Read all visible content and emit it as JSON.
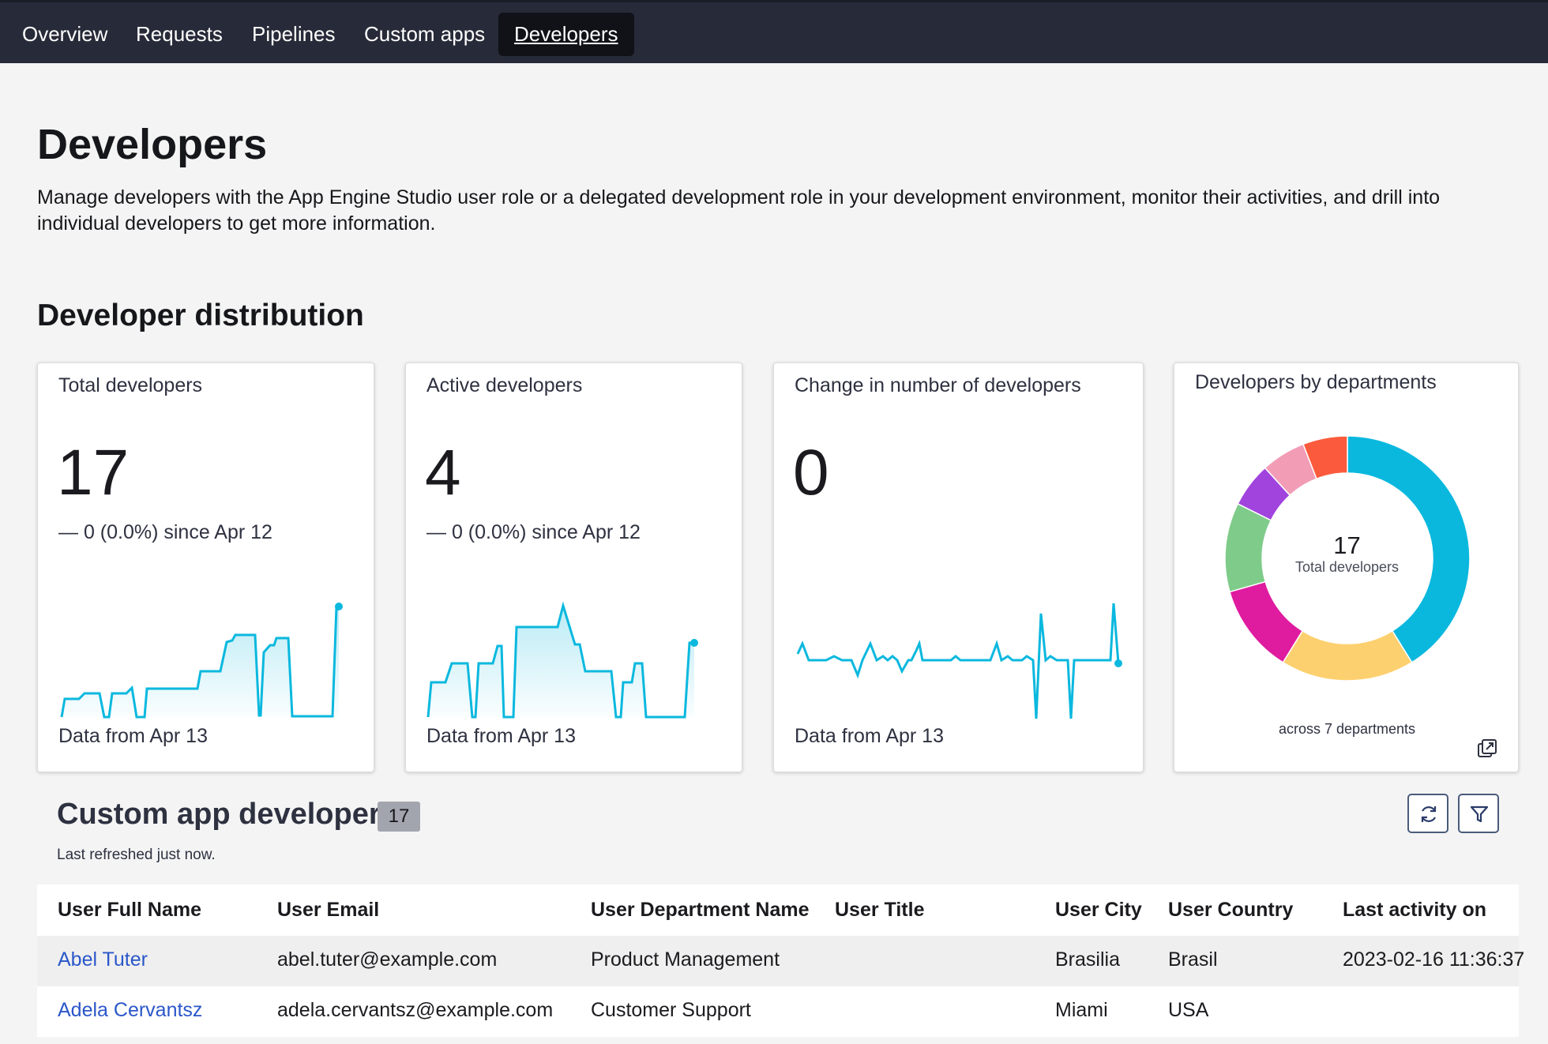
{
  "nav": {
    "items": [
      {
        "label": "Overview"
      },
      {
        "label": "Requests"
      },
      {
        "label": "Pipelines"
      },
      {
        "label": "Custom apps"
      },
      {
        "label": "Developers",
        "active": true
      }
    ]
  },
  "page": {
    "title": "Developers",
    "description": "Manage developers with the App Engine Studio user role or a delegated development role in your development environment, monitor their activities, and drill into individual developers to get more information."
  },
  "distribution": {
    "title": "Developer distribution",
    "cards": [
      {
        "title": "Total developers",
        "value": "17",
        "delta": "— 0 (0.0%) since Apr 12",
        "footer": "Data from Apr 13"
      },
      {
        "title": "Active developers",
        "value": "4",
        "delta": "— 0 (0.0%) since Apr 12",
        "footer": "Data from Apr 13"
      },
      {
        "title": "Change in number of developers",
        "value": "0",
        "footer": "Data from Apr 13"
      }
    ],
    "donut": {
      "title": "Developers by departments",
      "center_value": "17",
      "center_label": "Total developers",
      "footer": "across 7 departments",
      "expand_icon": "open-in-new-window-icon"
    }
  },
  "chart_data": {
    "type": "pie",
    "title": "Developers by departments",
    "series": [
      {
        "value": 7,
        "color": "#0ab8de"
      },
      {
        "value": 3,
        "color": "#fdd06f"
      },
      {
        "value": 2,
        "color": "#df1ba0"
      },
      {
        "value": 2,
        "color": "#7fcb8a"
      },
      {
        "value": 1,
        "color": "#a143dd"
      },
      {
        "value": 1,
        "color": "#f29cb6"
      },
      {
        "value": 1,
        "color": "#fb5a3c"
      }
    ],
    "total": 17
  },
  "table": {
    "title": "Custom app developers",
    "count": "17",
    "refreshed": "Last refreshed just now.",
    "refresh_icon": "refresh-icon",
    "filter_icon": "filter-icon",
    "columns": [
      "User Full Name",
      "User Email",
      "User Department Name",
      "User Title",
      "User City",
      "User Country",
      "Last activity on"
    ],
    "rows": [
      {
        "name": "Abel Tuter",
        "email": "abel.tuter@example.com",
        "department": "Product Management",
        "title": "",
        "city": "Brasilia",
        "country": "Brasil",
        "last_activity": "2023-02-16 11:36:37"
      },
      {
        "name": "Adela Cervantsz",
        "email": "adela.cervantsz@example.com",
        "department": "Customer Support",
        "title": "",
        "city": "Miami",
        "country": "USA",
        "last_activity": ""
      }
    ]
  },
  "colors": {
    "nav_bg": "#272a38",
    "accent": "#0ab8de",
    "link": "#2a57c9"
  }
}
